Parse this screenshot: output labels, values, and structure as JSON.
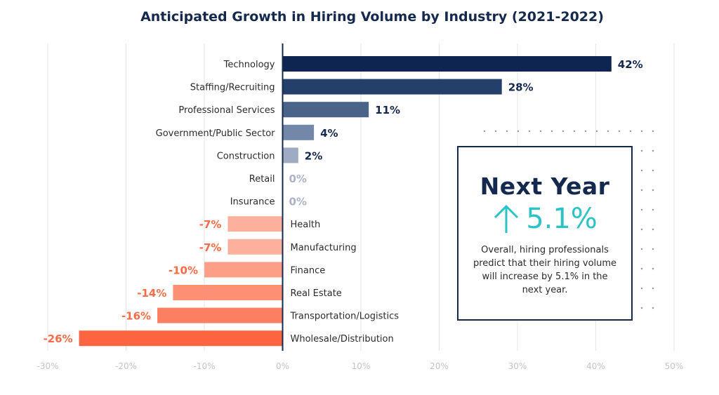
{
  "chart_data": {
    "type": "bar",
    "orientation": "horizontal",
    "title": "Anticipated Growth in Hiring Volume by Industry (2021-2022)",
    "xlabel": "",
    "ylabel": "",
    "xlim": [
      -30,
      50
    ],
    "x_ticks": [
      "-30%",
      "-20%",
      "-10%",
      "0%",
      "10%",
      "20%",
      "30%",
      "40%",
      "50%"
    ],
    "x_tick_values": [
      -30,
      -20,
      -10,
      0,
      10,
      20,
      30,
      40,
      50
    ],
    "grid": true,
    "categories": [
      "Technology",
      "Staffing/Recruiting",
      "Professional Services",
      "Government/Public Sector",
      "Construction",
      "Retail",
      "Insurance",
      "Health",
      "Manufacturing",
      "Finance",
      "Real Estate",
      "Transportation/Logistics",
      "Wholesale/Distribution"
    ],
    "values": [
      42,
      28,
      11,
      4,
      2,
      0,
      0,
      -7,
      -7,
      -10,
      -14,
      -16,
      -26
    ],
    "value_labels": [
      "42%",
      "28%",
      "11%",
      "4%",
      "2%",
      "0%",
      "0%",
      "-7%",
      "-7%",
      "-10%",
      "-14%",
      "-16%",
      "-26%"
    ],
    "bar_colors": [
      "#0f2551",
      "#253f6b",
      "#4a6489",
      "#7388a8",
      "#9eabc3",
      "#b8bfd0",
      "#b8bfd0",
      "#fdb09b",
      "#fdb09b",
      "#fd9f87",
      "#fd8f75",
      "#fd7f61",
      "#fd6440"
    ],
    "label_colors": [
      "#15294f",
      "#15294f",
      "#15294f",
      "#15294f",
      "#15294f",
      "#aab3c6",
      "#aab3c6",
      "#ff6a47",
      "#ff6a47",
      "#ff6a47",
      "#ff6a47",
      "#ff6a47",
      "#ff6a47"
    ],
    "axis_color": "#15294f",
    "grid_color": "#e4e4e4"
  },
  "callout": {
    "heading": "Next Year",
    "icon": "arrow-up-icon",
    "value": "5.1%",
    "body": "Overall, hiring professionals predict that their hiring volume will increase by 5.1% in the next year.",
    "accent_color": "#2cc3c8",
    "border_color": "#15294f"
  }
}
